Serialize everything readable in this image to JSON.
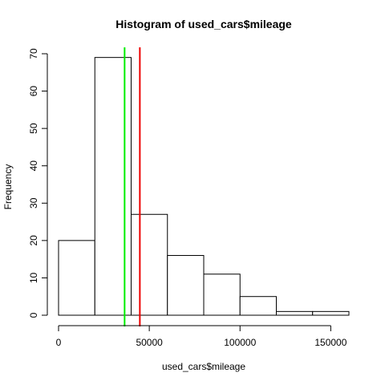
{
  "chart_data": {
    "type": "histogram",
    "title": "Histogram of used_cars$mileage",
    "xlabel": "used_cars$mileage",
    "ylabel": "Frequency",
    "bins": [
      {
        "start": 0,
        "end": 20000,
        "count": 20
      },
      {
        "start": 20000,
        "end": 40000,
        "count": 69
      },
      {
        "start": 40000,
        "end": 60000,
        "count": 27
      },
      {
        "start": 60000,
        "end": 80000,
        "count": 16
      },
      {
        "start": 80000,
        "end": 100000,
        "count": 11
      },
      {
        "start": 100000,
        "end": 120000,
        "count": 5
      },
      {
        "start": 120000,
        "end": 140000,
        "count": 1
      },
      {
        "start": 140000,
        "end": 160000,
        "count": 1
      }
    ],
    "xlim": [
      0,
      160000
    ],
    "ylim": [
      0,
      70
    ],
    "x_ticks": [
      0,
      50000,
      100000,
      150000
    ],
    "x_tick_labels": [
      "0",
      "50000",
      "100000",
      "150000"
    ],
    "y_ticks": [
      0,
      10,
      20,
      30,
      40,
      50,
      60,
      70
    ],
    "y_tick_labels": [
      "0",
      "10",
      "20",
      "30",
      "40",
      "50",
      "60",
      "70"
    ],
    "vlines": [
      {
        "x": 36400,
        "color": "#00ee00"
      },
      {
        "x": 44800,
        "color": "#ee0000"
      }
    ],
    "grid": false,
    "legend": "none"
  }
}
